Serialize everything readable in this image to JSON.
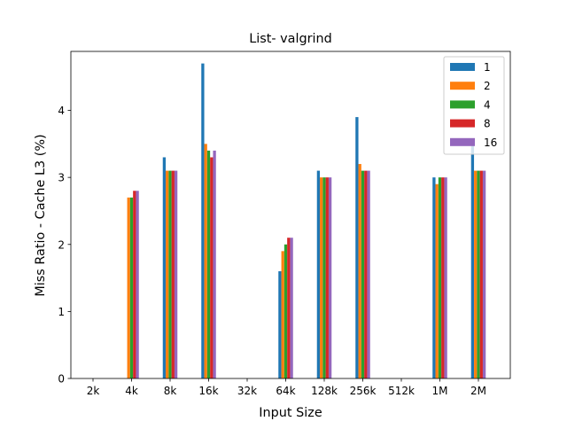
{
  "chart_data": {
    "type": "bar",
    "title": "List- valgrind",
    "xlabel": "Input Size",
    "ylabel": "Miss Ratio - Cache L3 (%)",
    "categories": [
      "2k",
      "4k",
      "8k",
      "16k",
      "32k",
      "64k",
      "128k",
      "256k",
      "512k",
      "1M",
      "2M"
    ],
    "ylim": [
      0,
      4.88
    ],
    "yticks": [
      0,
      1,
      2,
      3,
      4
    ],
    "legend_position": "top-right",
    "grid": false,
    "series": [
      {
        "name": "1",
        "color": "#1f77b4",
        "values": [
          null,
          null,
          3.3,
          4.7,
          null,
          1.6,
          3.1,
          3.9,
          null,
          3.0,
          3.5
        ]
      },
      {
        "name": "2",
        "color": "#ff7f0e",
        "values": [
          null,
          2.7,
          3.1,
          3.5,
          null,
          1.9,
          3.0,
          3.2,
          null,
          2.9,
          3.1
        ]
      },
      {
        "name": "4",
        "color": "#2ca02c",
        "values": [
          null,
          2.7,
          3.1,
          3.4,
          null,
          2.0,
          3.0,
          3.1,
          null,
          3.0,
          3.1
        ]
      },
      {
        "name": "8",
        "color": "#d62728",
        "values": [
          null,
          2.8,
          3.1,
          3.3,
          null,
          2.1,
          3.0,
          3.1,
          null,
          3.0,
          3.1
        ]
      },
      {
        "name": "16",
        "color": "#9467bd",
        "values": [
          null,
          2.8,
          3.1,
          3.4,
          null,
          2.1,
          3.0,
          3.1,
          null,
          3.0,
          3.1
        ]
      }
    ]
  }
}
